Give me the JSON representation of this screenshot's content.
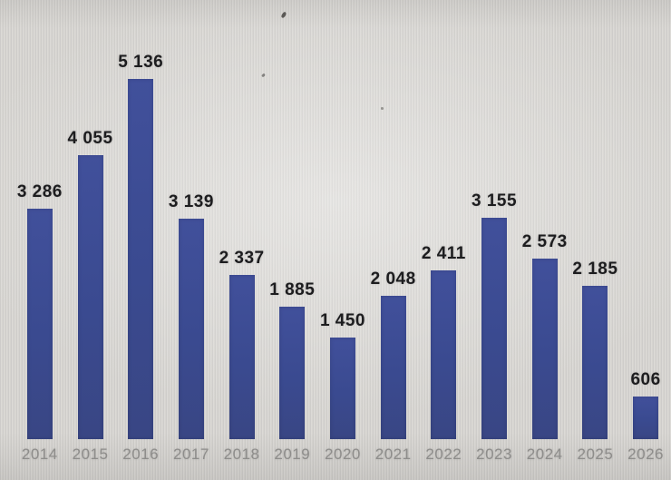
{
  "chart_data": {
    "type": "bar",
    "title": "",
    "xlabel": "",
    "ylabel": "",
    "categories": [
      "2014",
      "2015",
      "2016",
      "2017",
      "2018",
      "2019",
      "2020",
      "2021",
      "2022",
      "2023",
      "2024",
      "2025",
      "2026"
    ],
    "values": [
      3286,
      4055,
      5136,
      3139,
      2337,
      1885,
      1450,
      2048,
      2411,
      3155,
      2573,
      2185,
      606
    ],
    "value_labels": [
      "3 286",
      "4 055",
      "5 136",
      "3 139",
      "2 337",
      "1 885",
      "1 450",
      "2 048",
      "2 411",
      "3 155",
      "2 573",
      "2 185",
      "606"
    ],
    "ylim": [
      0,
      5500
    ],
    "grid": false,
    "legend_position": "none",
    "axis_lines": "none",
    "colors": {
      "bar": "#3a4a90",
      "value_label": "#1d1d1f",
      "axis_label": "#8e8d8b",
      "background": "#d7d5d1"
    }
  }
}
